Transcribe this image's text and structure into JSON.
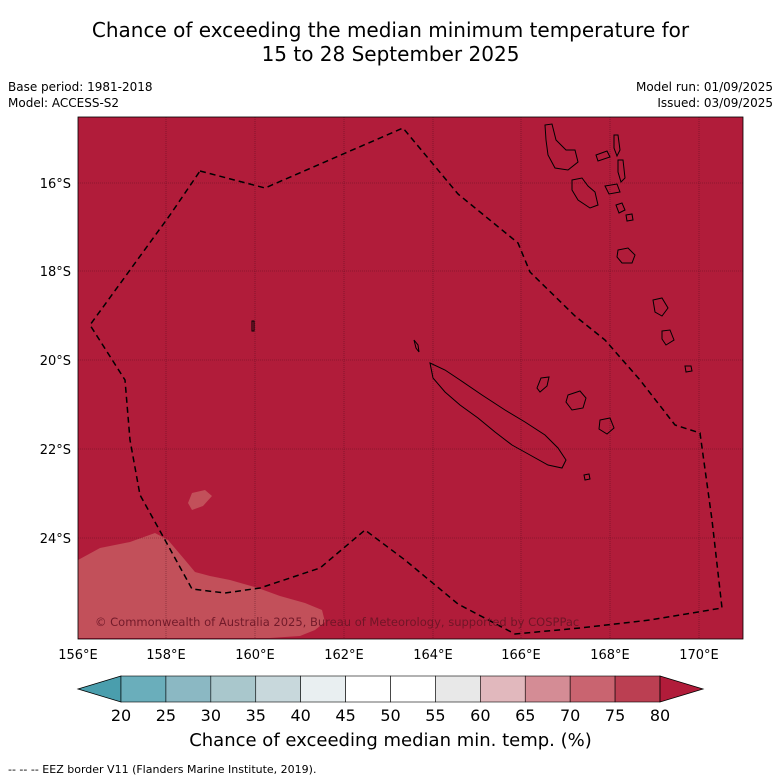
{
  "title": {
    "line1": "Chance of exceeding the median minimum temperature for",
    "line2": "15 to 28 September 2025"
  },
  "meta": {
    "base_period": "Base period: 1981-2018",
    "model": "Model: ACCESS-S2",
    "model_run": "Model run: 01/09/2025",
    "issued": "Issued: 03/09/2025"
  },
  "map": {
    "lat_labels": [
      "16°S",
      "18°S",
      "20°S",
      "22°S",
      "24°S"
    ],
    "lon_labels": [
      "156°E",
      "158°E",
      "160°E",
      "162°E",
      "164°E",
      "166°E",
      "168°E",
      "170°E"
    ],
    "copyright": "© Commonwealth of Australia 2025, Bureau of Meteorology, supported by COSPPac",
    "colors": {
      "ocean_high": "#b11c3a",
      "ocean_mid": "#c2505a",
      "land_outline": "#000000",
      "eez": "#000000"
    }
  },
  "colorbar": {
    "ticks": [
      "20",
      "25",
      "30",
      "35",
      "40",
      "45",
      "50",
      "55",
      "60",
      "65",
      "70",
      "75",
      "80"
    ],
    "colors": [
      "#4a9ead",
      "#6aaebb",
      "#8bb8c3",
      "#a9c7cc",
      "#c8d8dc",
      "#e9eff1",
      "#ffffff",
      "#ffffff",
      "#e8e8e8",
      "#e1b8bd",
      "#d48c95",
      "#c96470",
      "#bb3f52",
      "#b11c3a"
    ],
    "label": "Chance of exceeding median min. temp. (%)"
  },
  "footnote": "--  --  -- EEZ border V11 (Flanders Marine Institute, 2019)."
}
